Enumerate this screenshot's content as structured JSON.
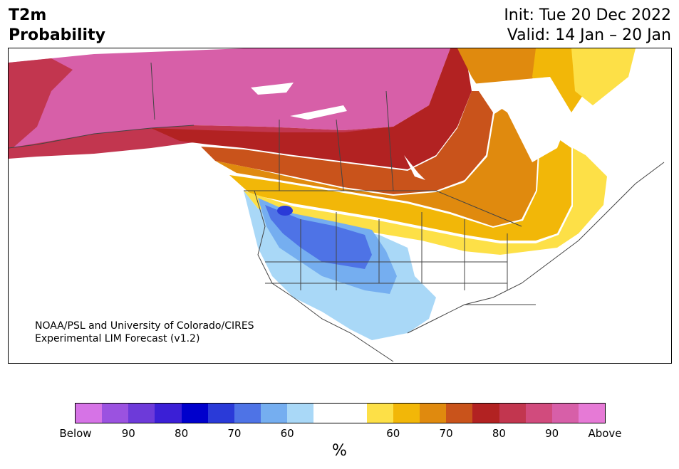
{
  "header": {
    "title_line1": "T2m",
    "title_line2": "Probability",
    "init": "Init: Tue 20 Dec 2022",
    "valid": "Valid: 14 Jan – 20 Jan"
  },
  "credit": {
    "line1": "NOAA/PSL and University of Colorado/CIRES",
    "line2": "Experimental LIM Forecast (v1.2)"
  },
  "colorbar": {
    "colors": [
      "#d673e6",
      "#9b52e0",
      "#6d3ad9",
      "#3b1fd6",
      "#0000cc",
      "#2a3ad8",
      "#4e73e6",
      "#75aef0",
      "#a9d8f7",
      "#ffffff",
      "#ffffff",
      "#fde047",
      "#f2b708",
      "#e08a0e",
      "#c9531b",
      "#b22222",
      "#c2364f",
      "#d14b7d",
      "#d75fa8",
      "#e67ad6"
    ],
    "tick_labels": [
      "Below",
      "90",
      "80",
      "70",
      "60",
      "60",
      "70",
      "80",
      "90",
      "Above"
    ],
    "unit": "%"
  },
  "map": {
    "region": "North America",
    "palette": {
      "deep_above": "#d75fa8",
      "above_80": "#c2364f",
      "above_75": "#b22222",
      "above_70": "#c9531b",
      "above_65": "#e08a0e",
      "above_60": "#f2b708",
      "above_55": "#fde047",
      "below_55": "#a9d8f7",
      "below_60": "#75aef0",
      "below_65": "#4e73e6",
      "below_70": "#2a3ad8",
      "water": "#ffffff",
      "borders": "#444444"
    }
  }
}
